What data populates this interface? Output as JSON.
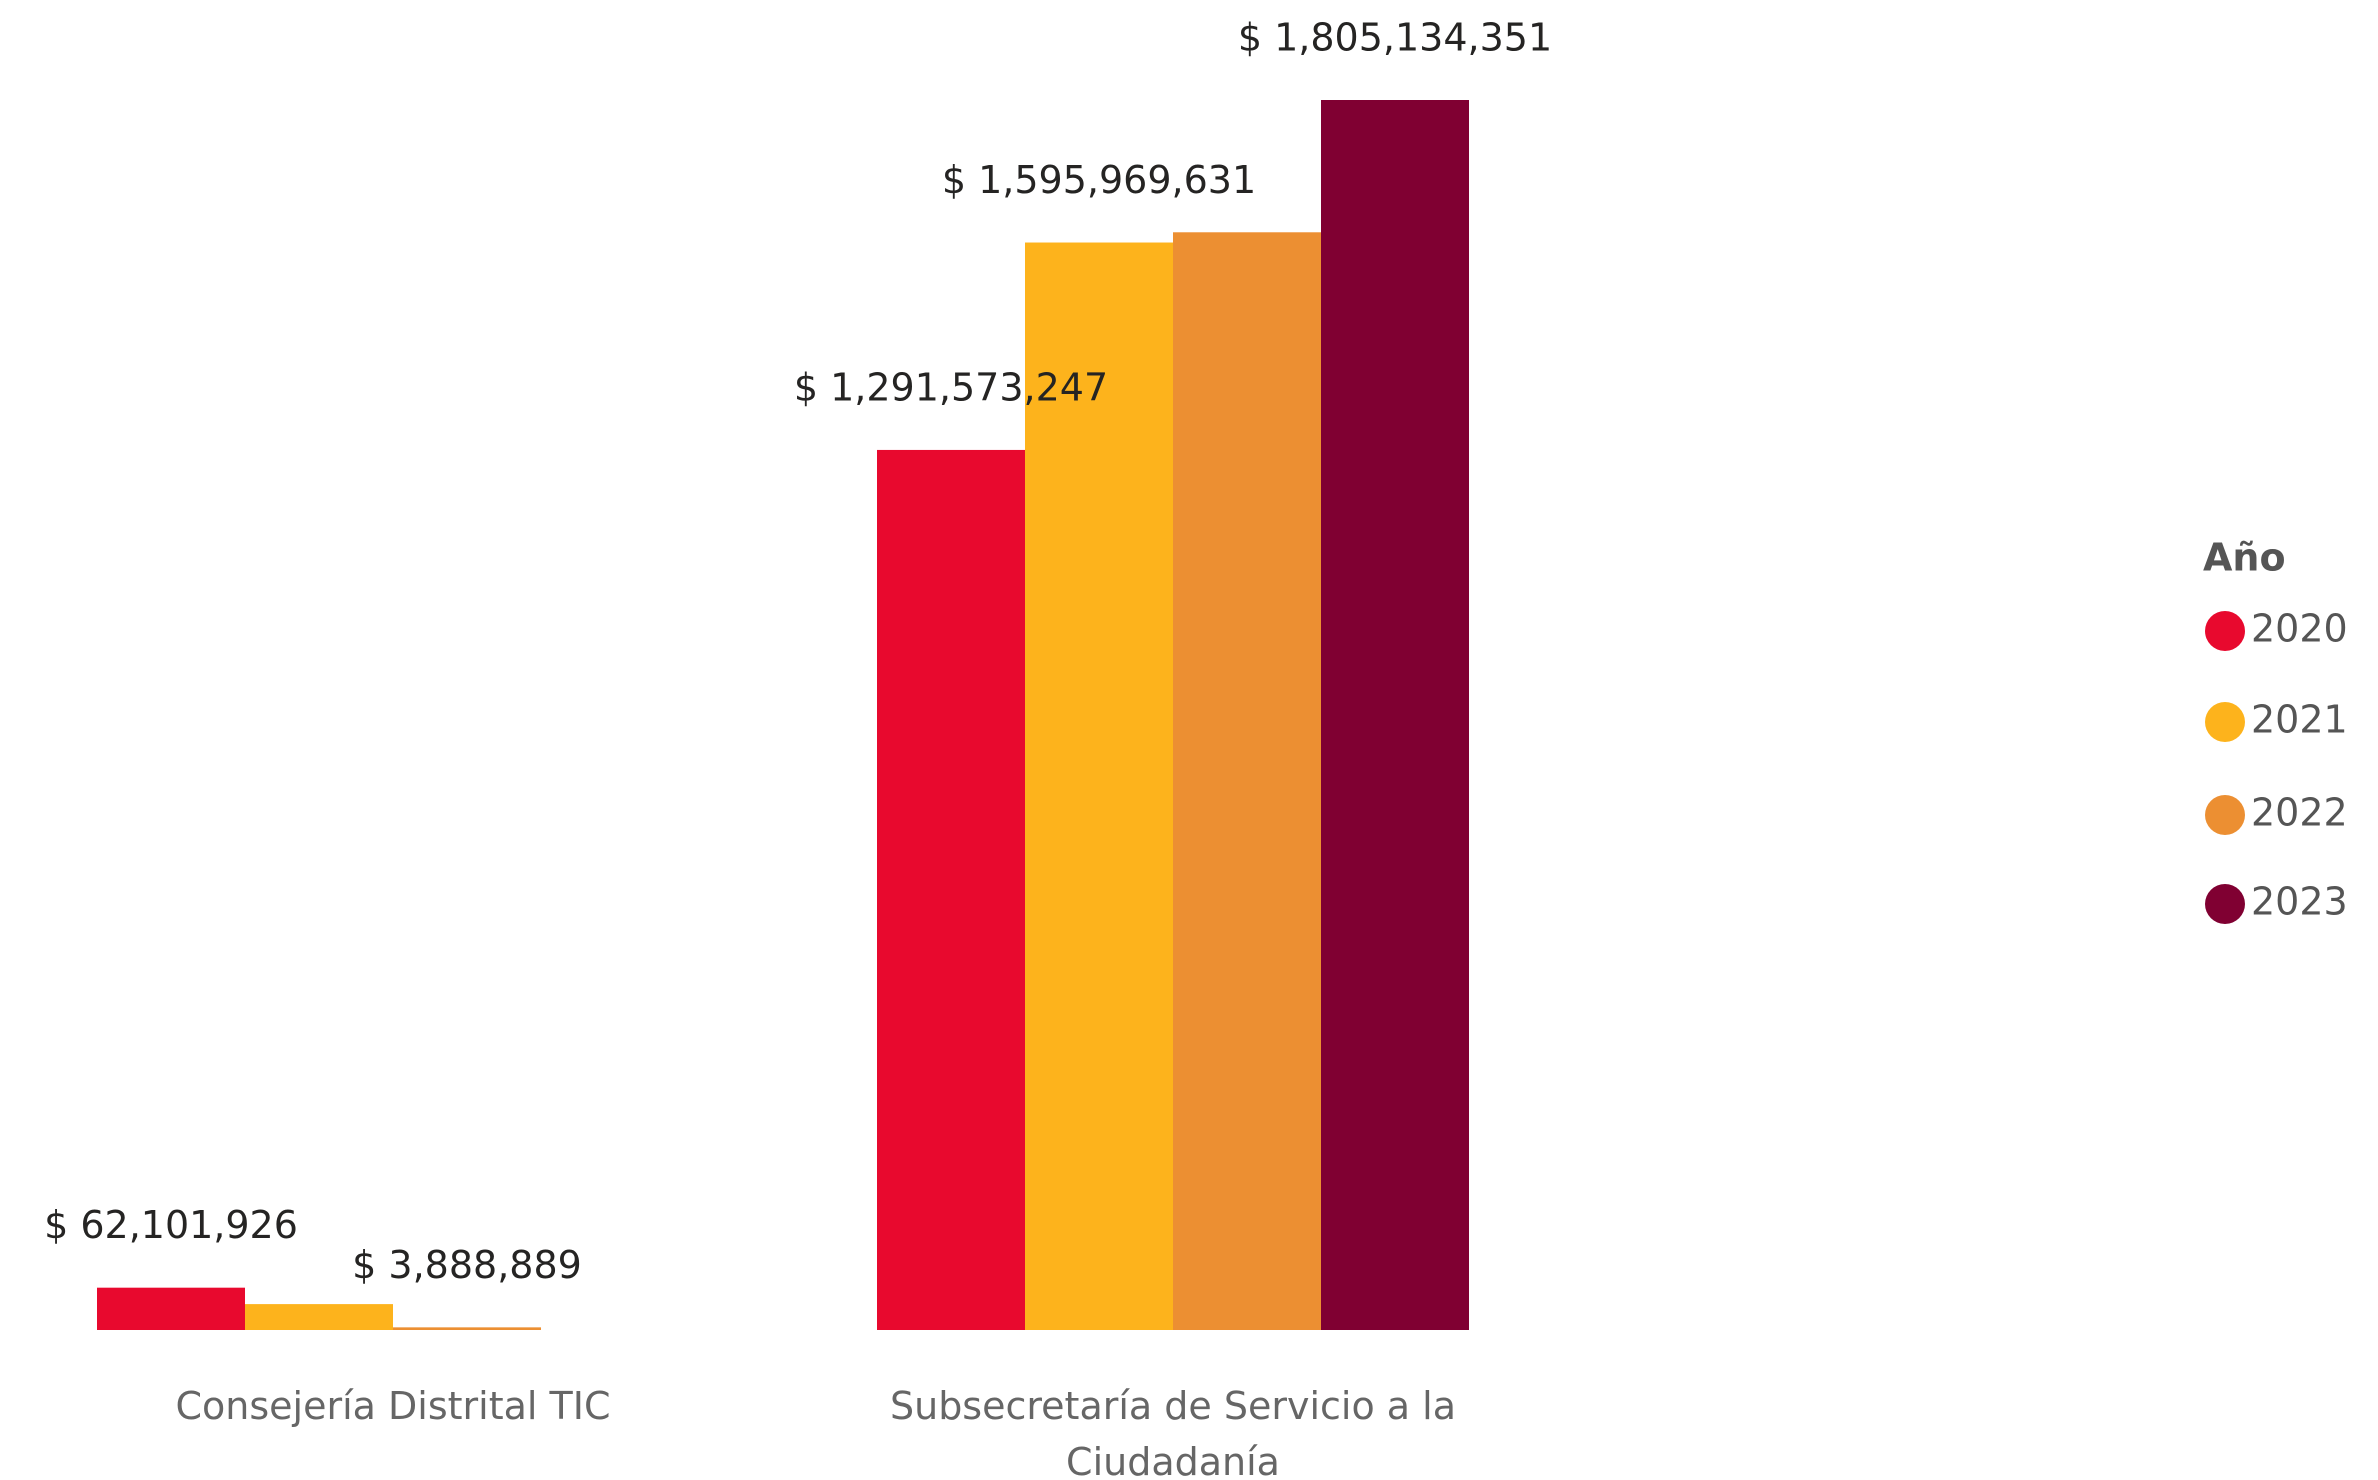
{
  "chart_data": {
    "type": "bar",
    "categories": [
      "Consejería Distrital TIC",
      "Subsecretaría de Servicio a la Ciudadanía"
    ],
    "legend_title": "Año",
    "legend": "right",
    "series": [
      {
        "name": "2020",
        "color": "#e8092e",
        "values": [
          62101926,
          1291573247
        ],
        "value_labels": [
          "$ 62,101,926",
          "$ 1,291,573,247"
        ]
      },
      {
        "name": "2021",
        "color": "#fdb31c",
        "values": [
          38000000,
          1595969631
        ],
        "value_labels": [
          null,
          "$ 1,595,969,631"
        ]
      },
      {
        "name": "2022",
        "color": "#ec8f32",
        "values": [
          3888889,
          1611000000
        ],
        "value_labels": [
          "$ 3,888,889",
          null
        ]
      },
      {
        "name": "2023",
        "color": "#800032",
        "values": [
          null,
          1805134351
        ],
        "value_labels": [
          null,
          "$ 1,805,134,351"
        ]
      }
    ]
  }
}
